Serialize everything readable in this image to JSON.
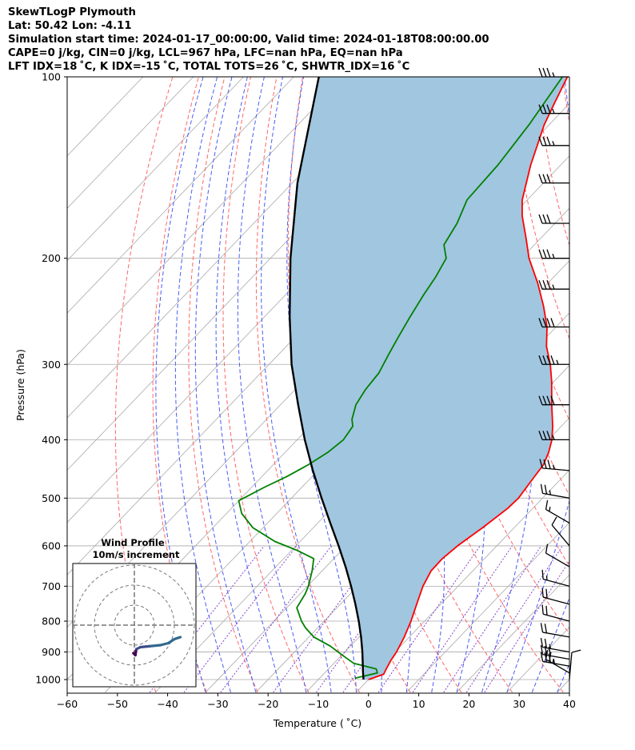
{
  "header": {
    "line1": "SkewTLogP Plymouth",
    "line2": "Lat: 50.42   Lon: -4.11",
    "line3": "Simulation start time: 2024-01-17_00:00:00, Valid time: 2024-01-18T08:00:00.00",
    "line4": "CAPE=0 j/kg, CIN=0 j/kg, LCL=967 hPa, LFC=nan hPa, EQ=nan hPa",
    "line5": "LFT IDX=18 ˚C, K IDX=-15 ˚C, TOTAL TOTS=26 ˚C, SHWTR_IDX=16 ˚C"
  },
  "chart_data": {
    "type": "line",
    "chart_kind": "skew-T log-P diagram",
    "xlabel": "Temperature ( ˚C)",
    "ylabel": "Pressure (hPa)",
    "xlim": [
      -60,
      40
    ],
    "ylim": [
      1050,
      100
    ],
    "y_scale": "log",
    "x_ticks": [
      -60,
      -50,
      -40,
      -30,
      -20,
      -10,
      0,
      10,
      20,
      30,
      40
    ],
    "x_tick_labels": [
      "−60",
      "−50",
      "−40",
      "−30",
      "−20",
      "−10",
      "0",
      "10",
      "20",
      "30",
      "40"
    ],
    "y_ticks": [
      1000,
      900,
      800,
      700,
      600,
      500,
      400,
      300,
      200,
      100
    ],
    "y_tick_labels": [
      "1000",
      "900",
      "800",
      "700",
      "600",
      "500",
      "400",
      "300",
      "200",
      "100"
    ],
    "grid": true,
    "colors": {
      "temperature": "#ff0000",
      "dewpoint": "#008000",
      "parcel": "#000000",
      "cin_fill": "#a1c6e0",
      "dry_adiabats": "#ff6666",
      "moist_adiabats": "#4a5cf5",
      "mixing_ratio": "#8844cc",
      "isotherms": "#aaaaaa"
    },
    "series": [
      {
        "role": "temperature",
        "points": [
          [
            1000,
            0.0
          ],
          [
            980,
            2.0
          ],
          [
            960,
            1.5
          ],
          [
            930,
            0.8
          ],
          [
            900,
            0.3
          ],
          [
            850,
            -1.0
          ],
          [
            800,
            -2.7
          ],
          [
            750,
            -4.8
          ],
          [
            700,
            -7.0
          ],
          [
            660,
            -8.3
          ],
          [
            630,
            -8.4
          ],
          [
            600,
            -7.8
          ],
          [
            560,
            -6.3
          ],
          [
            520,
            -5.0
          ],
          [
            500,
            -4.8
          ],
          [
            470,
            -5.5
          ],
          [
            440,
            -6.2
          ],
          [
            420,
            -7.5
          ],
          [
            400,
            -9.3
          ],
          [
            380,
            -11.7
          ],
          [
            350,
            -16.0
          ],
          [
            320,
            -20.5
          ],
          [
            300,
            -24.0
          ],
          [
            280,
            -28.2
          ],
          [
            260,
            -31.8
          ],
          [
            240,
            -36.5
          ],
          [
            220,
            -42.0
          ],
          [
            200,
            -48.5
          ],
          [
            185,
            -53.0
          ],
          [
            170,
            -58.0
          ],
          [
            160,
            -61.0
          ],
          [
            140,
            -66.0
          ],
          [
            120,
            -71.0
          ],
          [
            110,
            -73.2
          ],
          [
            100,
            -75.5
          ]
        ]
      },
      {
        "role": "dewpoint",
        "points": [
          [
            995,
            -3.0
          ],
          [
            975,
            0.5
          ],
          [
            960,
            -0.5
          ],
          [
            940,
            -6.0
          ],
          [
            910,
            -10.0
          ],
          [
            880,
            -14.0
          ],
          [
            850,
            -19.0
          ],
          [
            820,
            -22.5
          ],
          [
            800,
            -24.5
          ],
          [
            760,
            -28.0
          ],
          [
            720,
            -29.0
          ],
          [
            700,
            -29.8
          ],
          [
            660,
            -32.0
          ],
          [
            630,
            -34.0
          ],
          [
            610,
            -39.0
          ],
          [
            590,
            -45.0
          ],
          [
            560,
            -52.0
          ],
          [
            530,
            -57.0
          ],
          [
            505,
            -60.0
          ],
          [
            480,
            -57.5
          ],
          [
            460,
            -55.0
          ],
          [
            440,
            -53.0
          ],
          [
            420,
            -51.5
          ],
          [
            400,
            -50.8
          ],
          [
            380,
            -51.5
          ],
          [
            370,
            -53.0
          ],
          [
            350,
            -55.0
          ],
          [
            330,
            -56.0
          ],
          [
            310,
            -56.5
          ],
          [
            290,
            -58.0
          ],
          [
            270,
            -59.5
          ],
          [
            250,
            -61.0
          ],
          [
            230,
            -62.5
          ],
          [
            215,
            -63.5
          ],
          [
            200,
            -65.0
          ],
          [
            190,
            -68.0
          ],
          [
            175,
            -69.5
          ],
          [
            160,
            -72.0
          ],
          [
            140,
            -72.5
          ],
          [
            120,
            -74.0
          ],
          [
            100,
            -76.5
          ]
        ]
      },
      {
        "role": "parcel",
        "points": [
          [
            1000,
            -1.0
          ],
          [
            967,
            -2.8
          ],
          [
            950,
            -3.7
          ],
          [
            900,
            -6.5
          ],
          [
            850,
            -9.6
          ],
          [
            800,
            -13.1
          ],
          [
            750,
            -17.0
          ],
          [
            700,
            -21.3
          ],
          [
            650,
            -26.1
          ],
          [
            600,
            -31.5
          ],
          [
            550,
            -37.5
          ],
          [
            500,
            -44.0
          ],
          [
            450,
            -51.0
          ],
          [
            400,
            -58.5
          ],
          [
            350,
            -66.5
          ],
          [
            300,
            -75.5
          ],
          [
            250,
            -85.0
          ],
          [
            200,
            -96.0
          ],
          [
            150,
            -109.0
          ],
          [
            100,
            -125.0
          ]
        ]
      }
    ],
    "wind_barbs": [
      {
        "pressure": 1000,
        "speed_kt": 10,
        "direction_deg": 5
      },
      {
        "pressure": 975,
        "speed_kt": 25,
        "direction_deg": 300
      },
      {
        "pressure": 950,
        "speed_kt": 35,
        "direction_deg": 280
      },
      {
        "pressure": 925,
        "speed_kt": 30,
        "direction_deg": 280
      },
      {
        "pressure": 900,
        "speed_kt": 25,
        "direction_deg": 280
      },
      {
        "pressure": 850,
        "speed_kt": 20,
        "direction_deg": 280
      },
      {
        "pressure": 800,
        "speed_kt": 20,
        "direction_deg": 285
      },
      {
        "pressure": 750,
        "speed_kt": 20,
        "direction_deg": 285
      },
      {
        "pressure": 700,
        "speed_kt": 15,
        "direction_deg": 285
      },
      {
        "pressure": 650,
        "speed_kt": 10,
        "direction_deg": 300
      },
      {
        "pressure": 600,
        "speed_kt": 10,
        "direction_deg": 320
      },
      {
        "pressure": 550,
        "speed_kt": 15,
        "direction_deg": 300
      },
      {
        "pressure": 500,
        "speed_kt": 25,
        "direction_deg": 280
      },
      {
        "pressure": 450,
        "speed_kt": 35,
        "direction_deg": 275
      },
      {
        "pressure": 400,
        "speed_kt": 35,
        "direction_deg": 270
      },
      {
        "pressure": 350,
        "speed_kt": 40,
        "direction_deg": 270
      },
      {
        "pressure": 300,
        "speed_kt": 45,
        "direction_deg": 270
      },
      {
        "pressure": 260,
        "speed_kt": 40,
        "direction_deg": 270
      },
      {
        "pressure": 225,
        "speed_kt": 35,
        "direction_deg": 270
      },
      {
        "pressure": 200,
        "speed_kt": 35,
        "direction_deg": 270
      },
      {
        "pressure": 175,
        "speed_kt": 30,
        "direction_deg": 270
      },
      {
        "pressure": 150,
        "speed_kt": 30,
        "direction_deg": 270
      },
      {
        "pressure": 130,
        "speed_kt": 35,
        "direction_deg": 270
      },
      {
        "pressure": 115,
        "speed_kt": 35,
        "direction_deg": 270
      },
      {
        "pressure": 100,
        "speed_kt": 35,
        "direction_deg": 270
      }
    ],
    "hodograph": {
      "title": "Wind Profile",
      "subtitle": "10m/s increment",
      "ring_increment_ms": 10,
      "rings": 3,
      "points_ms": [
        [
          -0.5,
          -14
        ],
        [
          0.5,
          -15
        ],
        [
          1,
          -12
        ],
        [
          3,
          -11
        ],
        [
          8,
          -10.5
        ],
        [
          13,
          -10
        ],
        [
          17,
          -9
        ],
        [
          20,
          -7
        ],
        [
          23,
          -6
        ]
      ]
    }
  }
}
